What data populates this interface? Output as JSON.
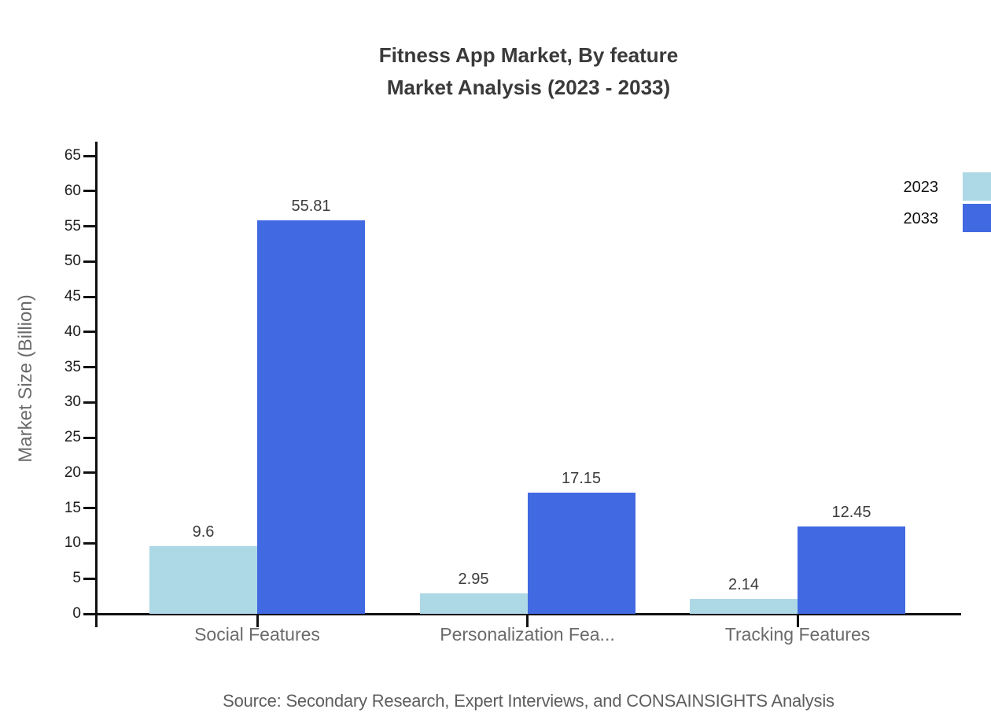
{
  "title": {
    "line1": "Fitness App Market, By feature",
    "line2": "Market Analysis (2023 - 2033)"
  },
  "legend": {
    "items": [
      {
        "label": "2023",
        "color": "#ADD8E6"
      },
      {
        "label": "2033",
        "color": "#4169E1"
      }
    ]
  },
  "source": "Source: Secondary Research, Expert Interviews, and CONSAINSIGHTS Analysis",
  "chart_data": {
    "type": "bar",
    "title": "Fitness App Market, By feature Market Analysis (2023 - 2033)",
    "categories": [
      "Social Features",
      "Personalization Fea...",
      "Tracking Features"
    ],
    "series": [
      {
        "name": "2023",
        "color": "#ADD8E6",
        "values": [
          9.6,
          2.95,
          2.14
        ]
      },
      {
        "name": "2033",
        "color": "#4169E1",
        "values": [
          55.81,
          17.15,
          12.45
        ]
      }
    ],
    "xlabel": "",
    "ylabel": "Market Size (Billion)",
    "ylim": [
      0,
      65
    ],
    "yticks": [
      0,
      5,
      10,
      15,
      20,
      25,
      30,
      35,
      40,
      45,
      50,
      55,
      60,
      65
    ],
    "grid": false,
    "legend_position": "top-right"
  }
}
